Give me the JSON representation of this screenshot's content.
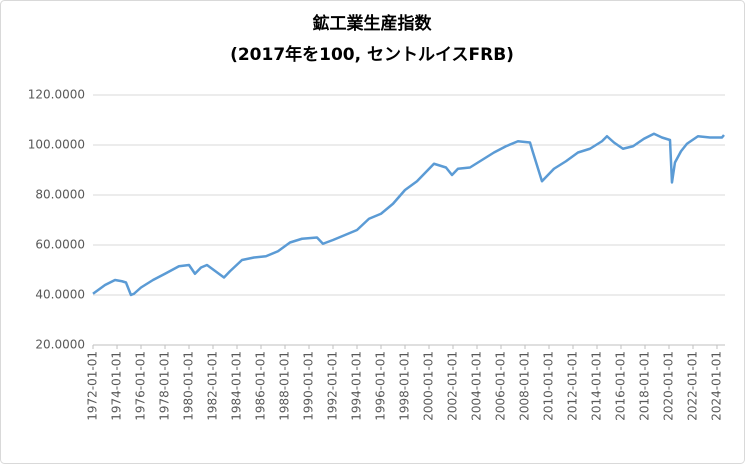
{
  "chart_data": {
    "type": "line",
    "title": "鉱工業生産指数",
    "subtitle": "(2017年を100, セントルイスFRB)",
    "x": [
      "1972-01-01",
      "1973-01-01",
      "1973-11-01",
      "1974-06-01",
      "1974-10-01",
      "1975-03-01",
      "1975-06-01",
      "1976-01-01",
      "1977-01-01",
      "1978-01-01",
      "1979-03-01",
      "1980-01-01",
      "1980-07-01",
      "1981-01-01",
      "1981-07-01",
      "1982-12-01",
      "1983-06-01",
      "1984-06-01",
      "1985-06-01",
      "1986-06-01",
      "1987-06-01",
      "1988-06-01",
      "1989-06-01",
      "1990-09-01",
      "1991-03-01",
      "1992-01-01",
      "1993-01-01",
      "1994-01-01",
      "1995-01-01",
      "1996-01-01",
      "1997-01-01",
      "1998-01-01",
      "1999-01-01",
      "2000-06-01",
      "2001-06-01",
      "2001-12-01",
      "2002-06-01",
      "2003-06-01",
      "2004-06-01",
      "2005-06-01",
      "2006-06-01",
      "2007-06-01",
      "2008-06-01",
      "2008-09-01",
      "2009-06-01",
      "2010-06-01",
      "2011-06-01",
      "2012-06-01",
      "2013-06-01",
      "2014-06-01",
      "2014-11-01",
      "2015-06-01",
      "2016-03-01",
      "2017-01-01",
      "2017-12-01",
      "2018-10-01",
      "2019-06-01",
      "2020-02-01",
      "2020-04-01",
      "2020-07-01",
      "2021-01-01",
      "2021-07-01",
      "2022-06-01",
      "2023-06-01",
      "2024-06-01",
      "2024-08-01"
    ],
    "values": [
      40.5,
      44,
      46,
      45.5,
      45,
      40,
      40.5,
      43,
      46,
      48.5,
      51.5,
      52,
      48.5,
      51,
      52,
      47,
      49.5,
      54,
      55,
      55.5,
      57.5,
      61,
      62.5,
      63,
      60.5,
      62,
      64,
      66,
      70.5,
      72.5,
      76.5,
      82,
      85.5,
      92.5,
      91,
      88,
      90.5,
      91,
      94,
      97,
      99.5,
      101.5,
      101,
      97,
      85.5,
      90.5,
      93.5,
      97,
      98.5,
      101.5,
      103.5,
      101,
      98.5,
      99.5,
      102.5,
      104.5,
      103,
      102,
      85,
      93,
      97.5,
      100.5,
      103.5,
      103,
      103,
      104
    ],
    "color": "#5b9bd5",
    "xlim": [
      "1972-01-01",
      "2024-09-01"
    ],
    "xticks": [
      "1972-01-01",
      "1974-01-01",
      "1976-01-01",
      "1978-01-01",
      "1980-01-01",
      "1982-01-01",
      "1984-01-01",
      "1986-01-01",
      "1988-01-01",
      "1990-01-01",
      "1992-01-01",
      "1994-01-01",
      "1996-01-01",
      "1998-01-01",
      "2000-01-01",
      "2002-01-01",
      "2004-01-01",
      "2006-01-01",
      "2008-01-01",
      "2010-01-01",
      "2012-01-01",
      "2014-01-01",
      "2016-01-01",
      "2018-01-01",
      "2020-01-01",
      "2022-01-01",
      "2024-01-01"
    ],
    "ylim": [
      20,
      120
    ],
    "yticks": [
      {
        "value": 20,
        "label": "20.0000"
      },
      {
        "value": 40,
        "label": "40.0000"
      },
      {
        "value": 60,
        "label": "60.0000"
      },
      {
        "value": 80,
        "label": "80.0000"
      },
      {
        "value": 100,
        "label": "100.0000"
      },
      {
        "value": 120,
        "label": "120.0000"
      }
    ],
    "grid": true
  }
}
